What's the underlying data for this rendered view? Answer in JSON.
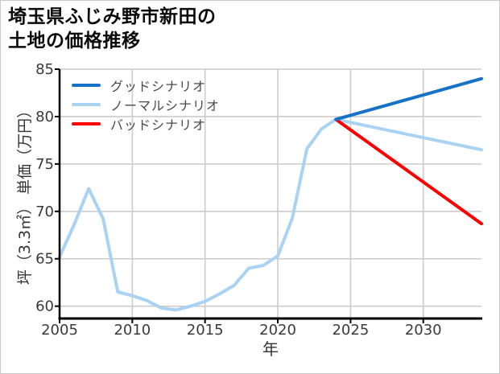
{
  "title": "埼玉県ふじみ野市新田の\n土地の価格推移",
  "legend": {
    "items": [
      {
        "label": "グッドシナリオ"
      },
      {
        "label": "ノーマルシナリオ"
      },
      {
        "label": "バッドシナリオ"
      }
    ]
  },
  "colors": {
    "good": "#1572c6",
    "normal": "#a9d2f3",
    "bad": "#ff0000",
    "grid": "#cccccc",
    "spine": "#000000",
    "tick_label": "#3a3a3a"
  },
  "chart_data": {
    "type": "line",
    "title": "埼玉県ふじみ野市新田の土地の価格推移",
    "xlabel": "年",
    "ylabel": "坪（3.3㎡） 単価（万円）",
    "xlim": [
      2005,
      2034
    ],
    "ylim": [
      58.7,
      85
    ],
    "xticks": [
      2005,
      2010,
      2015,
      2020,
      2025,
      2030
    ],
    "yticks": [
      60,
      65,
      70,
      75,
      80,
      85
    ],
    "grid": true,
    "legend_position": "upper-left",
    "series": [
      {
        "name": "ノーマルシナリオ",
        "color": "#a9d2f3",
        "x": [
          2005,
          2006,
          2007,
          2008,
          2009,
          2010,
          2011,
          2012,
          2013,
          2014,
          2015,
          2016,
          2017,
          2018,
          2019,
          2020,
          2021,
          2022,
          2023,
          2024,
          2034
        ],
        "y": [
          65.2,
          68.6,
          72.4,
          69.2,
          61.5,
          61.1,
          60.6,
          59.8,
          59.6,
          60.0,
          60.5,
          61.3,
          62.2,
          64.0,
          64.3,
          65.3,
          69.3,
          76.6,
          78.7,
          79.7,
          76.5
        ]
      },
      {
        "name": "バッドシナリオ",
        "color": "#ff0000",
        "x": [
          2024,
          2034
        ],
        "y": [
          79.7,
          68.7
        ]
      },
      {
        "name": "グッドシナリオ",
        "color": "#1572c6",
        "x": [
          2024,
          2034
        ],
        "y": [
          79.7,
          84.0
        ]
      }
    ]
  }
}
